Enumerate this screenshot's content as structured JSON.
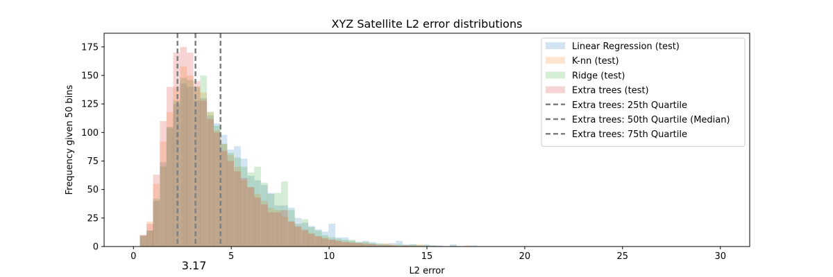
{
  "chart_data": {
    "type": "histogram",
    "title": "XYZ Satellite L2 error distributions",
    "xlabel": "L2 error",
    "ylabel": "Frequency given 50 bins",
    "xlim": [
      -1.5,
      31.5
    ],
    "ylim": [
      0,
      187
    ],
    "xticks": [
      0,
      5,
      10,
      15,
      20,
      25,
      30
    ],
    "yticks": [
      0,
      25,
      50,
      75,
      100,
      125,
      150,
      175
    ],
    "grid": false,
    "legend_position": "top-right",
    "annotation": "3.17",
    "series": [
      {
        "name": "Linear Regression (test)",
        "color": "#1f77b4",
        "opacity": 0.2,
        "bin_width": 0.345,
        "bins": [
          [
            0.33,
            10
          ],
          [
            0.67,
            14
          ],
          [
            1.0,
            40
          ],
          [
            1.35,
            74
          ],
          [
            1.69,
            105
          ],
          [
            2.03,
            125
          ],
          [
            2.38,
            143
          ],
          [
            2.72,
            140
          ],
          [
            3.07,
            128
          ],
          [
            3.41,
            130
          ],
          [
            3.76,
            115
          ],
          [
            4.1,
            108
          ],
          [
            4.45,
            98
          ],
          [
            4.79,
            85
          ],
          [
            5.14,
            88
          ],
          [
            5.48,
            77
          ],
          [
            5.83,
            62
          ],
          [
            6.17,
            58
          ],
          [
            6.52,
            54
          ],
          [
            6.86,
            47
          ],
          [
            7.21,
            36
          ],
          [
            7.55,
            36
          ],
          [
            7.9,
            34
          ],
          [
            8.24,
            25
          ],
          [
            8.59,
            21
          ],
          [
            8.93,
            18
          ],
          [
            9.28,
            15
          ],
          [
            9.62,
            13
          ],
          [
            9.97,
            20
          ],
          [
            10.31,
            8
          ],
          [
            10.66,
            8
          ],
          [
            11.0,
            5
          ],
          [
            11.35,
            4
          ],
          [
            11.69,
            5
          ],
          [
            12.04,
            4
          ],
          [
            12.38,
            3
          ],
          [
            12.73,
            2
          ],
          [
            13.07,
            3
          ],
          [
            13.42,
            5
          ],
          [
            13.76,
            2
          ],
          [
            14.11,
            2
          ],
          [
            14.45,
            1
          ],
          [
            14.8,
            2
          ],
          [
            15.14,
            1
          ],
          [
            15.49,
            1
          ],
          [
            16.18,
            2
          ],
          [
            17.21,
            1
          ]
        ]
      },
      {
        "name": "K-nn (test)",
        "color": "#ff7f0e",
        "opacity": 0.2,
        "bin_width": 0.345,
        "bins": [
          [
            0.33,
            10
          ],
          [
            0.67,
            22
          ],
          [
            1.0,
            55
          ],
          [
            1.35,
            92
          ],
          [
            1.69,
            118
          ],
          [
            2.03,
            140
          ],
          [
            2.38,
            158
          ],
          [
            2.72,
            150
          ],
          [
            3.07,
            140
          ],
          [
            3.41,
            135
          ],
          [
            3.76,
            118
          ],
          [
            4.1,
            102
          ],
          [
            4.45,
            90
          ],
          [
            4.79,
            80
          ],
          [
            5.14,
            70
          ],
          [
            5.48,
            58
          ],
          [
            5.83,
            52
          ],
          [
            6.17,
            46
          ],
          [
            6.52,
            40
          ],
          [
            6.86,
            34
          ],
          [
            7.21,
            32
          ],
          [
            7.55,
            26
          ],
          [
            7.9,
            22
          ],
          [
            8.24,
            17
          ],
          [
            8.59,
            14
          ],
          [
            8.93,
            12
          ],
          [
            9.28,
            9
          ],
          [
            9.62,
            8
          ],
          [
            9.97,
            6
          ],
          [
            10.31,
            5
          ],
          [
            10.66,
            4
          ],
          [
            11.0,
            4
          ],
          [
            11.35,
            3
          ],
          [
            11.69,
            3
          ],
          [
            12.04,
            2
          ],
          [
            12.38,
            2
          ],
          [
            12.73,
            3
          ],
          [
            13.07,
            2
          ],
          [
            13.42,
            1
          ],
          [
            13.76,
            1
          ],
          [
            14.11,
            1
          ],
          [
            14.45,
            2
          ],
          [
            14.8,
            1
          ],
          [
            16.87,
            1
          ]
        ]
      },
      {
        "name": "Ridge (test)",
        "color": "#2ca02c",
        "opacity": 0.2,
        "bin_width": 0.345,
        "bins": [
          [
            0.33,
            9
          ],
          [
            0.67,
            14
          ],
          [
            1.0,
            42
          ],
          [
            1.35,
            70
          ],
          [
            1.69,
            104
          ],
          [
            2.03,
            128
          ],
          [
            2.38,
            148
          ],
          [
            2.72,
            146
          ],
          [
            3.07,
            140
          ],
          [
            3.41,
            150
          ],
          [
            3.76,
            118
          ],
          [
            4.1,
            106
          ],
          [
            4.45,
            90
          ],
          [
            4.79,
            82
          ],
          [
            5.14,
            78
          ],
          [
            5.48,
            70
          ],
          [
            5.83,
            65
          ],
          [
            6.17,
            70
          ],
          [
            6.52,
            56
          ],
          [
            6.86,
            46
          ],
          [
            7.21,
            47
          ],
          [
            7.55,
            57
          ],
          [
            7.9,
            32
          ],
          [
            8.24,
            20
          ],
          [
            8.59,
            24
          ],
          [
            8.93,
            17
          ],
          [
            9.28,
            14
          ],
          [
            9.62,
            10
          ],
          [
            9.97,
            8
          ],
          [
            10.31,
            7
          ],
          [
            10.66,
            6
          ],
          [
            11.0,
            6
          ],
          [
            11.35,
            4
          ],
          [
            11.69,
            4
          ],
          [
            12.04,
            3
          ],
          [
            12.38,
            2
          ],
          [
            12.73,
            2
          ],
          [
            13.07,
            1
          ],
          [
            13.42,
            2
          ],
          [
            13.76,
            1
          ],
          [
            14.11,
            2
          ],
          [
            14.45,
            1
          ],
          [
            14.8,
            1
          ],
          [
            15.14,
            1
          ],
          [
            16.18,
            1
          ]
        ]
      },
      {
        "name": "Extra trees (test)",
        "color": "#d62728",
        "opacity": 0.2,
        "bin_width": 0.345,
        "bins": [
          [
            0.33,
            10
          ],
          [
            0.67,
            20
          ],
          [
            1.0,
            63
          ],
          [
            1.35,
            110
          ],
          [
            1.69,
            140
          ],
          [
            2.03,
            170
          ],
          [
            2.38,
            175
          ],
          [
            2.72,
            170
          ],
          [
            3.07,
            145
          ],
          [
            3.41,
            128
          ],
          [
            3.76,
            112
          ],
          [
            4.1,
            100
          ],
          [
            4.45,
            84
          ],
          [
            4.79,
            75
          ],
          [
            5.14,
            66
          ],
          [
            5.48,
            60
          ],
          [
            5.83,
            52
          ],
          [
            6.17,
            43
          ],
          [
            6.52,
            37
          ],
          [
            6.86,
            30
          ],
          [
            7.21,
            30
          ],
          [
            7.55,
            32
          ],
          [
            7.9,
            22
          ],
          [
            8.24,
            18
          ],
          [
            8.59,
            15
          ],
          [
            8.93,
            11
          ],
          [
            9.28,
            9
          ],
          [
            9.62,
            7
          ],
          [
            9.97,
            6
          ],
          [
            10.31,
            5
          ],
          [
            10.66,
            4
          ],
          [
            11.0,
            3
          ],
          [
            11.35,
            3
          ],
          [
            11.69,
            2
          ],
          [
            12.04,
            2
          ],
          [
            12.38,
            1
          ],
          [
            12.73,
            1
          ],
          [
            13.07,
            1
          ],
          [
            13.76,
            1
          ]
        ]
      }
    ],
    "vlines": [
      {
        "name": "Extra trees: 25th Quartile",
        "x": 2.25,
        "color": "#7f7f7f"
      },
      {
        "name": "Extra trees: 50th Quartile (Median)",
        "x": 3.17,
        "color": "#7f7f7f"
      },
      {
        "name": "Extra trees: 75th Quartile",
        "x": 4.45,
        "color": "#7f7f7f"
      }
    ]
  }
}
